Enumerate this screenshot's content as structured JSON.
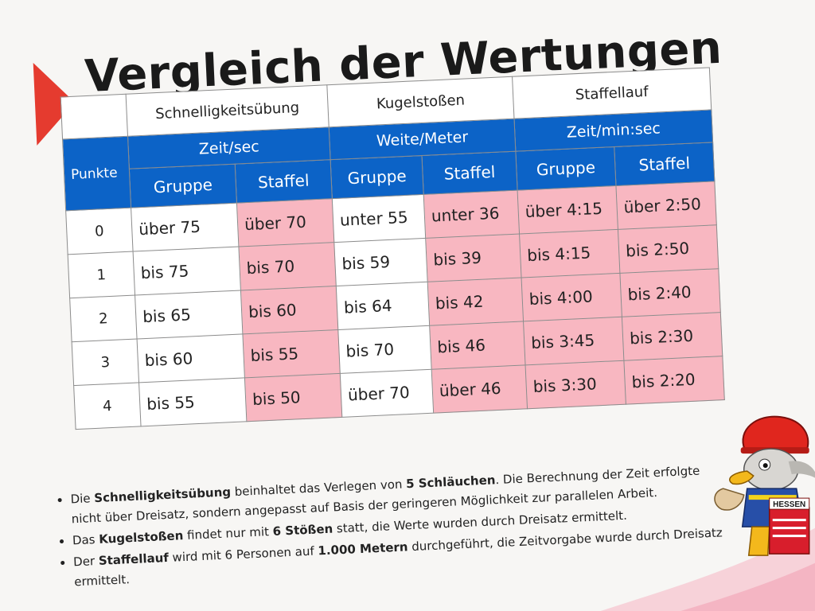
{
  "title": "Vergleich der Wertungen",
  "table": {
    "disciplines": [
      "Schnelligkeitsübung",
      "Kugelstoßen",
      "Staffellauf"
    ],
    "units": [
      "Zeit/sec",
      "Weite/Meter",
      "Zeit/min:sec"
    ],
    "punkte_label": "Punkte",
    "sub_headers": [
      "Gruppe",
      "Staffel",
      "Gruppe",
      "Staffel",
      "Gruppe",
      "Staffel"
    ],
    "rows": [
      {
        "points": "0",
        "cells": [
          "über 75",
          "über 70",
          "unter 55",
          "unter 36",
          "über 4:15",
          "über 2:50"
        ]
      },
      {
        "points": "1",
        "cells": [
          "bis 75",
          "bis 70",
          "bis 59",
          "bis 39",
          "bis 4:15",
          "bis 2:50"
        ]
      },
      {
        "points": "2",
        "cells": [
          "bis 65",
          "bis 60",
          "bis 64",
          "bis 42",
          "bis 4:00",
          "bis 2:40"
        ]
      },
      {
        "points": "3",
        "cells": [
          "bis 60",
          "bis 55",
          "bis 70",
          "bis 46",
          "bis 3:45",
          "bis 2:30"
        ]
      },
      {
        "points": "4",
        "cells": [
          "bis 55",
          "bis 50",
          "über 70",
          "über 46",
          "bis 3:30",
          "bis 2:20"
        ]
      }
    ]
  },
  "notes": [
    {
      "parts": [
        {
          "t": "Die ",
          "b": false
        },
        {
          "t": "Schnelligkeitsübung",
          "b": true
        },
        {
          "t": " beinhaltet das Verlegen von ",
          "b": false
        },
        {
          "t": "5 Schläuchen",
          "b": true
        },
        {
          "t": ". Die Berechnung der Zeit erfolgte nicht über Dreisatz, sondern angepasst auf Basis der geringeren Möglichkeit zur parallelen Arbeit.",
          "b": false
        }
      ]
    },
    {
      "parts": [
        {
          "t": "Das ",
          "b": false
        },
        {
          "t": "Kugelstoßen",
          "b": true
        },
        {
          "t": " findet nur mit ",
          "b": false
        },
        {
          "t": "6 Stößen",
          "b": true
        },
        {
          "t": " statt, die Werte wurden durch  Dreisatz ermittelt.",
          "b": false
        }
      ]
    },
    {
      "parts": [
        {
          "t": "Der ",
          "b": false
        },
        {
          "t": "Staffellauf",
          "b": true
        },
        {
          "t": " wird mit 6 Personen auf ",
          "b": false
        },
        {
          "t": "1.000 Metern",
          "b": true
        },
        {
          "t": " durchgeführt, die Zeitvorgabe wurde durch Dreisatz ermittelt.",
          "b": false
        }
      ]
    }
  ],
  "mascot": {
    "badge_text": "HESSEN"
  },
  "colors": {
    "accent_red": "#e53b2f",
    "header_blue": "#0c63c7",
    "staffel_pink": "#f8b7c1"
  }
}
